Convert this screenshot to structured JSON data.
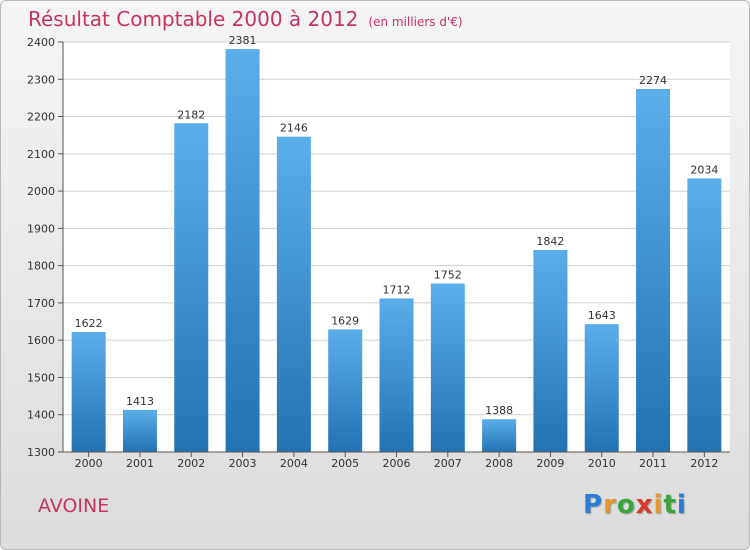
{
  "page": {
    "title": "Résultat Comptable 2000 à 2012",
    "subtitle": "(en milliers d'€)",
    "commune": "AVOINE",
    "logo": {
      "letters": [
        "P",
        "r",
        "o",
        "x",
        "i",
        "t",
        "i"
      ],
      "colors": [
        "#2a7bd6",
        "#e8962a",
        "#3aa53a",
        "#d63a2a",
        "#e8962a",
        "#3aa53a",
        "#2a7bd6"
      ]
    }
  },
  "chart_data": {
    "type": "bar",
    "title": "Résultat Comptable 2000 à 2012",
    "ylabel": "en milliers d'€",
    "categories": [
      "2000",
      "2001",
      "2002",
      "2003",
      "2004",
      "2005",
      "2006",
      "2007",
      "2008",
      "2009",
      "2010",
      "2011",
      "2012"
    ],
    "values": [
      1622,
      1413,
      2182,
      2381,
      2146,
      1629,
      1712,
      1752,
      1388,
      1842,
      1643,
      2274,
      2034
    ],
    "ylim": [
      1300,
      2400
    ],
    "yticks": [
      1300,
      1400,
      1500,
      1600,
      1700,
      1800,
      1900,
      2000,
      2100,
      2200,
      2300,
      2400
    ],
    "grid": true,
    "colors": {
      "bar_light": "#5aaeea",
      "bar_dark": "#2272b4",
      "accent": "#c8345e"
    }
  }
}
